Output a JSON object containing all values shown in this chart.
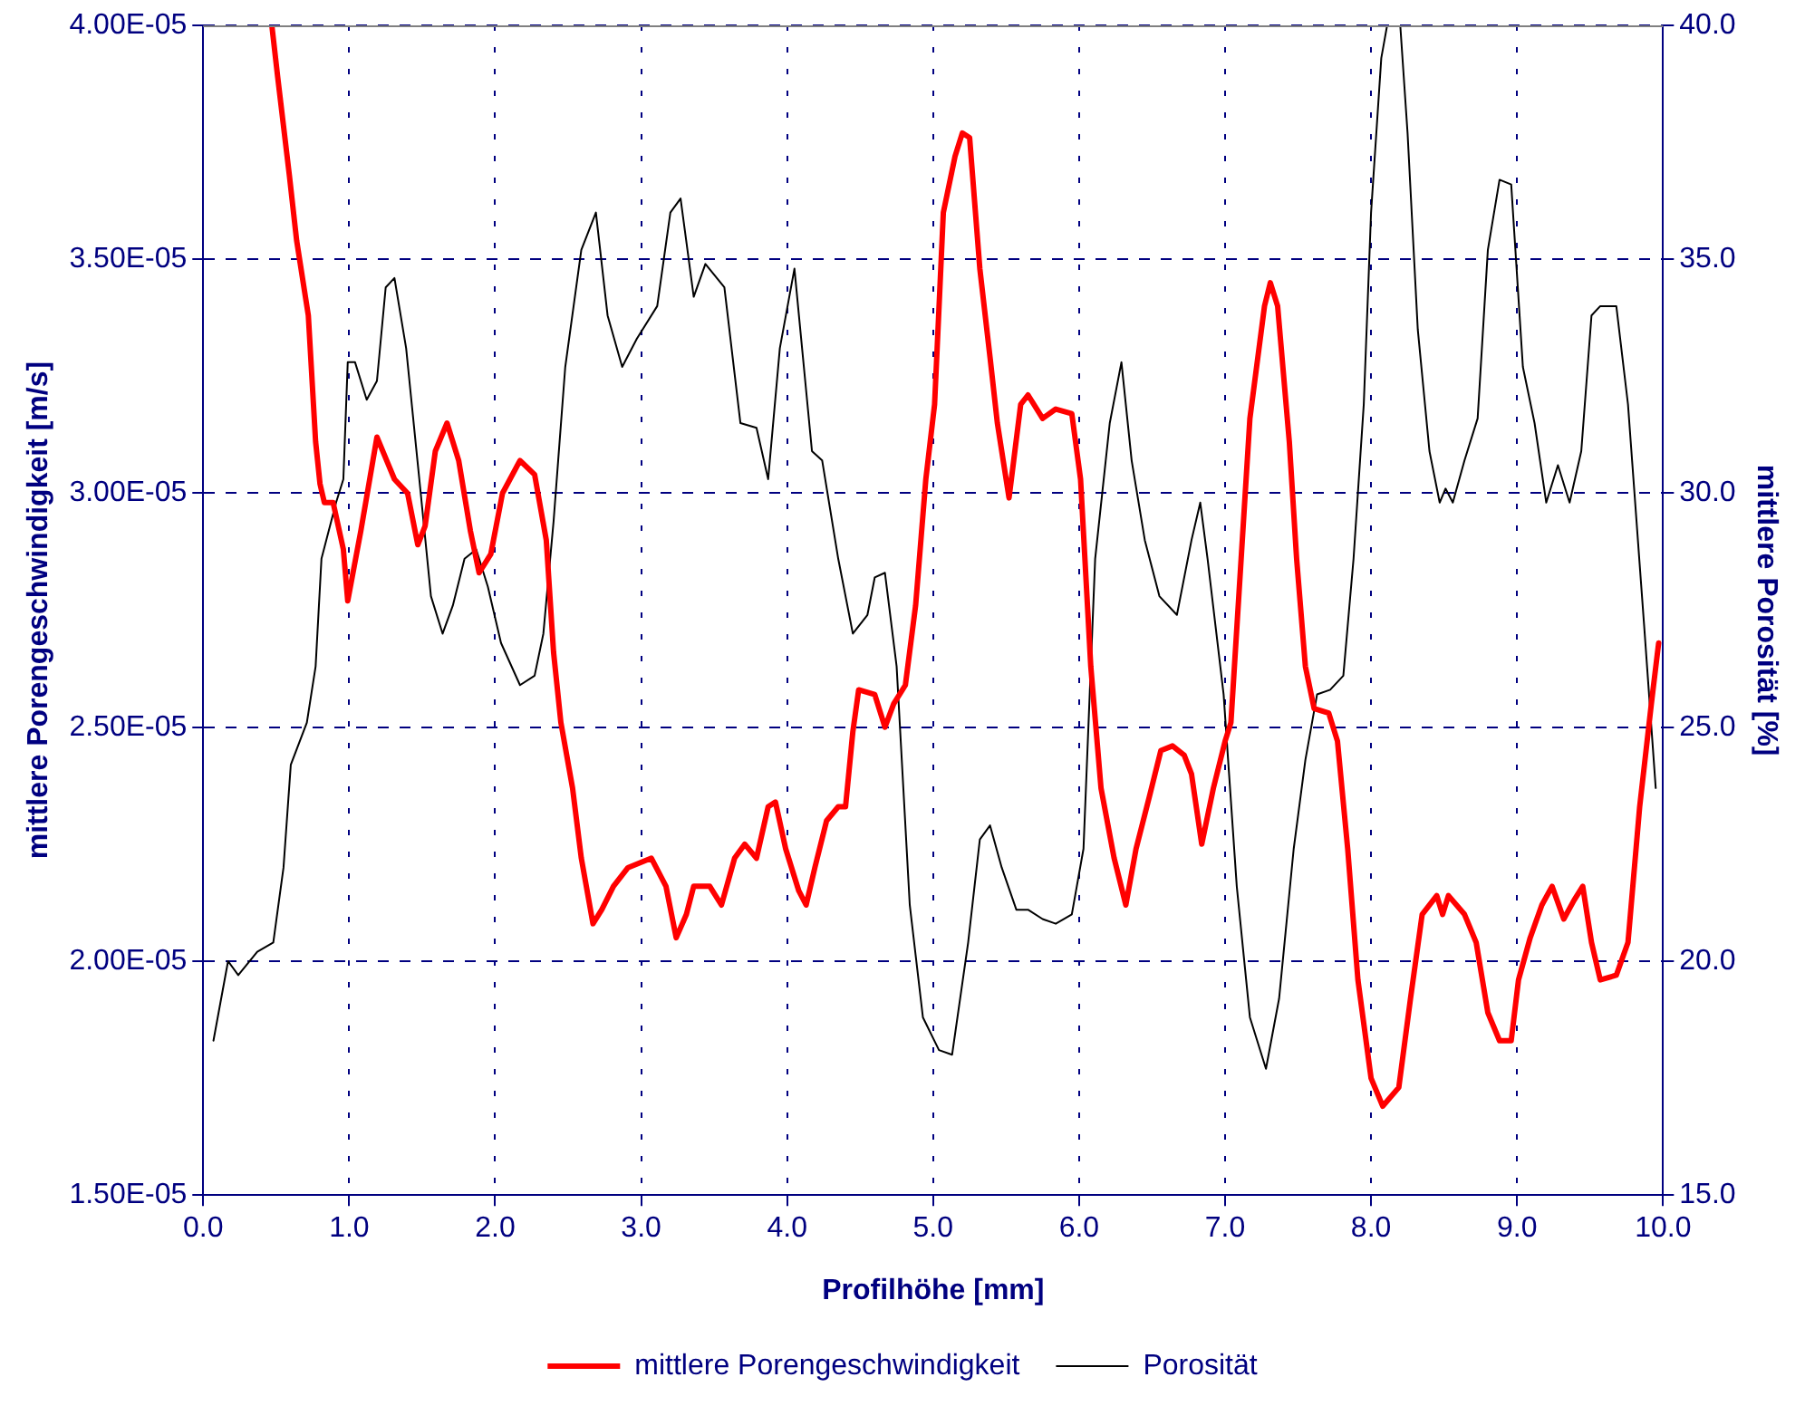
{
  "chart_data": {
    "type": "line",
    "xlabel": "Profilhöhe [mm]",
    "ylabel": "mittlere Porengeschwindigkeit [m/s]",
    "y2label": "mittlere Porosität [%]",
    "xlim": [
      0,
      10
    ],
    "xticks": [
      {
        "value": 0,
        "label": "0.0"
      },
      {
        "value": 1,
        "label": "1.0"
      },
      {
        "value": 2,
        "label": "2.0"
      },
      {
        "value": 3,
        "label": "3.0"
      },
      {
        "value": 4,
        "label": "4.0"
      },
      {
        "value": 5,
        "label": "5.0"
      },
      {
        "value": 6,
        "label": "6.0"
      },
      {
        "value": 7,
        "label": "7.0"
      },
      {
        "value": 8,
        "label": "8.0"
      },
      {
        "value": 9,
        "label": "9.0"
      },
      {
        "value": 10,
        "label": "10.0"
      }
    ],
    "ylim": [
      1.5e-05,
      4e-05
    ],
    "yticks": [
      {
        "value": 1.5e-05,
        "label": "1.50E-05"
      },
      {
        "value": 2e-05,
        "label": "2.00E-05"
      },
      {
        "value": 2.5e-05,
        "label": "2.50E-05"
      },
      {
        "value": 3e-05,
        "label": "3.00E-05"
      },
      {
        "value": 3.5e-05,
        "label": "3.50E-05"
      },
      {
        "value": 4e-05,
        "label": "4.00E-05"
      }
    ],
    "y2lim": [
      15,
      40
    ],
    "y2ticks": [
      {
        "value": 15,
        "label": "15.0"
      },
      {
        "value": 20,
        "label": "20.0"
      },
      {
        "value": 25,
        "label": "25.0"
      },
      {
        "value": 30,
        "label": "30.0"
      },
      {
        "value": 35,
        "label": "35.0"
      },
      {
        "value": 40,
        "label": "40.0"
      }
    ],
    "grid": true,
    "legend": "bottom",
    "marker": "none",
    "line_style": "solid",
    "series": [
      {
        "name": "mittlere Porengeschwindigkeit",
        "color": "#ff0000",
        "axis": "y",
        "x": [
          0.47,
          0.51,
          0.59,
          0.64,
          0.72,
          0.77,
          0.8,
          0.83,
          0.89,
          0.96,
          0.99,
          1.08,
          1.19,
          1.31,
          1.4,
          1.47,
          1.52,
          1.59,
          1.67,
          1.75,
          1.83,
          1.89,
          1.97,
          2.05,
          2.17,
          2.27,
          2.35,
          2.4,
          2.45,
          2.53,
          2.59,
          2.67,
          2.73,
          2.81,
          2.91,
          3.07,
          3.17,
          3.24,
          3.31,
          3.36,
          3.47,
          3.55,
          3.64,
          3.71,
          3.79,
          3.87,
          3.92,
          3.99,
          4.08,
          4.13,
          4.19,
          4.27,
          4.35,
          4.4,
          4.45,
          4.49,
          4.6,
          4.67,
          4.73,
          4.81,
          4.88,
          4.95,
          5.01,
          5.07,
          5.15,
          5.2,
          5.25,
          5.32,
          5.39,
          5.44,
          5.52,
          5.6,
          5.65,
          5.75,
          5.84,
          5.95,
          6.01,
          6.08,
          6.15,
          6.24,
          6.32,
          6.39,
          6.48,
          6.56,
          6.64,
          6.72,
          6.77,
          6.84,
          6.92,
          7.0,
          7.04,
          7.11,
          7.17,
          7.27,
          7.31,
          7.36,
          7.44,
          7.49,
          7.55,
          7.61,
          7.71,
          7.77,
          7.84,
          7.91,
          8.0,
          8.08,
          8.19,
          8.27,
          8.35,
          8.45,
          8.49,
          8.53,
          8.64,
          8.72,
          8.8,
          8.88,
          8.96,
          9.01,
          9.09,
          9.17,
          9.24,
          9.32,
          9.39,
          9.45,
          9.51,
          9.57,
          9.68,
          9.76,
          9.84,
          9.92,
          9.97
        ],
        "values": [
          4e-05,
          3.89e-05,
          3.68e-05,
          3.54e-05,
          3.38e-05,
          3.11e-05,
          3.02e-05,
          2.98e-05,
          2.98e-05,
          2.88e-05,
          2.77e-05,
          2.92e-05,
          3.12e-05,
          3.03e-05,
          3e-05,
          2.89e-05,
          2.93e-05,
          3.09e-05,
          3.15e-05,
          3.07e-05,
          2.92e-05,
          2.83e-05,
          2.87e-05,
          3e-05,
          3.07e-05,
          3.04e-05,
          2.9e-05,
          2.66e-05,
          2.51e-05,
          2.37e-05,
          2.22e-05,
          2.08e-05,
          2.11e-05,
          2.16e-05,
          2.2e-05,
          2.22e-05,
          2.16e-05,
          2.05e-05,
          2.1e-05,
          2.16e-05,
          2.16e-05,
          2.12e-05,
          2.22e-05,
          2.25e-05,
          2.22e-05,
          2.33e-05,
          2.34e-05,
          2.24e-05,
          2.15e-05,
          2.12e-05,
          2.2e-05,
          2.3e-05,
          2.33e-05,
          2.33e-05,
          2.49e-05,
          2.58e-05,
          2.57e-05,
          2.5e-05,
          2.55e-05,
          2.59e-05,
          2.76e-05,
          3.03e-05,
          3.19e-05,
          3.6e-05,
          3.72e-05,
          3.77e-05,
          3.76e-05,
          3.48e-05,
          3.29e-05,
          3.15e-05,
          2.99e-05,
          3.19e-05,
          3.21e-05,
          3.16e-05,
          3.18e-05,
          3.17e-05,
          3.03e-05,
          2.63e-05,
          2.37e-05,
          2.22e-05,
          2.12e-05,
          2.24e-05,
          2.35e-05,
          2.45e-05,
          2.46e-05,
          2.44e-05,
          2.4e-05,
          2.25e-05,
          2.37e-05,
          2.47e-05,
          2.51e-05,
          2.86e-05,
          3.16e-05,
          3.4e-05,
          3.45e-05,
          3.4e-05,
          3.11e-05,
          2.86e-05,
          2.63e-05,
          2.54e-05,
          2.53e-05,
          2.47e-05,
          2.24e-05,
          1.96e-05,
          1.75e-05,
          1.69e-05,
          1.73e-05,
          1.92e-05,
          2.1e-05,
          2.14e-05,
          2.1e-05,
          2.14e-05,
          2.1e-05,
          2.04e-05,
          1.89e-05,
          1.83e-05,
          1.83e-05,
          1.96e-05,
          2.05e-05,
          2.12e-05,
          2.16e-05,
          2.09e-05,
          2.13e-05,
          2.16e-05,
          2.04e-05,
          1.96e-05,
          1.97e-05,
          2.04e-05,
          2.33e-05,
          2.55e-05,
          2.68e-05
        ]
      },
      {
        "name": "Porosität",
        "color": "#000000",
        "axis": "y2",
        "x": [
          0.07,
          0.17,
          0.24,
          0.37,
          0.48,
          0.55,
          0.6,
          0.71,
          0.77,
          0.81,
          0.91,
          0.96,
          0.99,
          1.04,
          1.12,
          1.19,
          1.25,
          1.31,
          1.39,
          1.49,
          1.56,
          1.64,
          1.71,
          1.79,
          1.87,
          1.95,
          2.04,
          2.17,
          2.27,
          2.33,
          2.4,
          2.48,
          2.59,
          2.69,
          2.77,
          2.87,
          2.97,
          3.11,
          3.2,
          3.27,
          3.36,
          3.44,
          3.57,
          3.68,
          3.79,
          3.87,
          3.95,
          4.05,
          4.17,
          4.24,
          4.35,
          4.45,
          4.55,
          4.6,
          4.67,
          4.75,
          4.84,
          4.93,
          5.04,
          5.13,
          5.24,
          5.32,
          5.39,
          5.47,
          5.57,
          5.65,
          5.75,
          5.84,
          5.95,
          6.03,
          6.11,
          6.21,
          6.29,
          6.36,
          6.45,
          6.55,
          6.67,
          6.77,
          6.83,
          6.88,
          6.99,
          7.08,
          7.17,
          7.28,
          7.37,
          7.47,
          7.55,
          7.63,
          7.72,
          7.81,
          7.88,
          7.95,
          8.0,
          8.07,
          8.11,
          8.2,
          8.25,
          8.32,
          8.4,
          8.47,
          8.51,
          8.56,
          8.64,
          8.73,
          8.8,
          8.88,
          8.96,
          9.04,
          9.12,
          9.2,
          9.28,
          9.36,
          9.44,
          9.51,
          9.57,
          9.68,
          9.76,
          9.87,
          9.95
        ],
        "values": [
          18.3,
          20.0,
          19.7,
          20.2,
          20.4,
          22.0,
          24.2,
          25.1,
          26.3,
          28.6,
          29.8,
          30.3,
          32.8,
          32.8,
          32.0,
          32.4,
          34.4,
          34.6,
          33.1,
          30.0,
          27.8,
          27.0,
          27.6,
          28.6,
          28.8,
          28.0,
          26.8,
          25.9,
          26.1,
          27.0,
          29.4,
          32.7,
          35.2,
          36.0,
          33.8,
          32.7,
          33.3,
          34.0,
          36.0,
          36.3,
          34.2,
          34.9,
          34.4,
          31.5,
          31.4,
          30.3,
          33.1,
          34.8,
          30.9,
          30.7,
          28.6,
          27.0,
          27.4,
          28.2,
          28.3,
          26.3,
          21.2,
          18.8,
          18.1,
          18.0,
          20.4,
          22.6,
          22.9,
          22.0,
          21.1,
          21.1,
          20.9,
          20.8,
          21.0,
          22.4,
          28.6,
          31.5,
          32.8,
          30.7,
          29.0,
          27.8,
          27.4,
          29.0,
          29.8,
          28.6,
          25.7,
          21.6,
          18.8,
          17.7,
          19.2,
          22.4,
          24.3,
          25.7,
          25.8,
          26.1,
          28.6,
          31.9,
          36.0,
          39.3,
          40.0,
          40.0,
          37.7,
          33.5,
          30.9,
          29.8,
          30.1,
          29.8,
          30.7,
          31.6,
          35.2,
          36.7,
          36.6,
          32.7,
          31.5,
          29.8,
          30.6,
          29.8,
          30.9,
          33.8,
          34.0,
          34.0,
          31.9,
          27.2,
          23.7
        ]
      }
    ]
  }
}
